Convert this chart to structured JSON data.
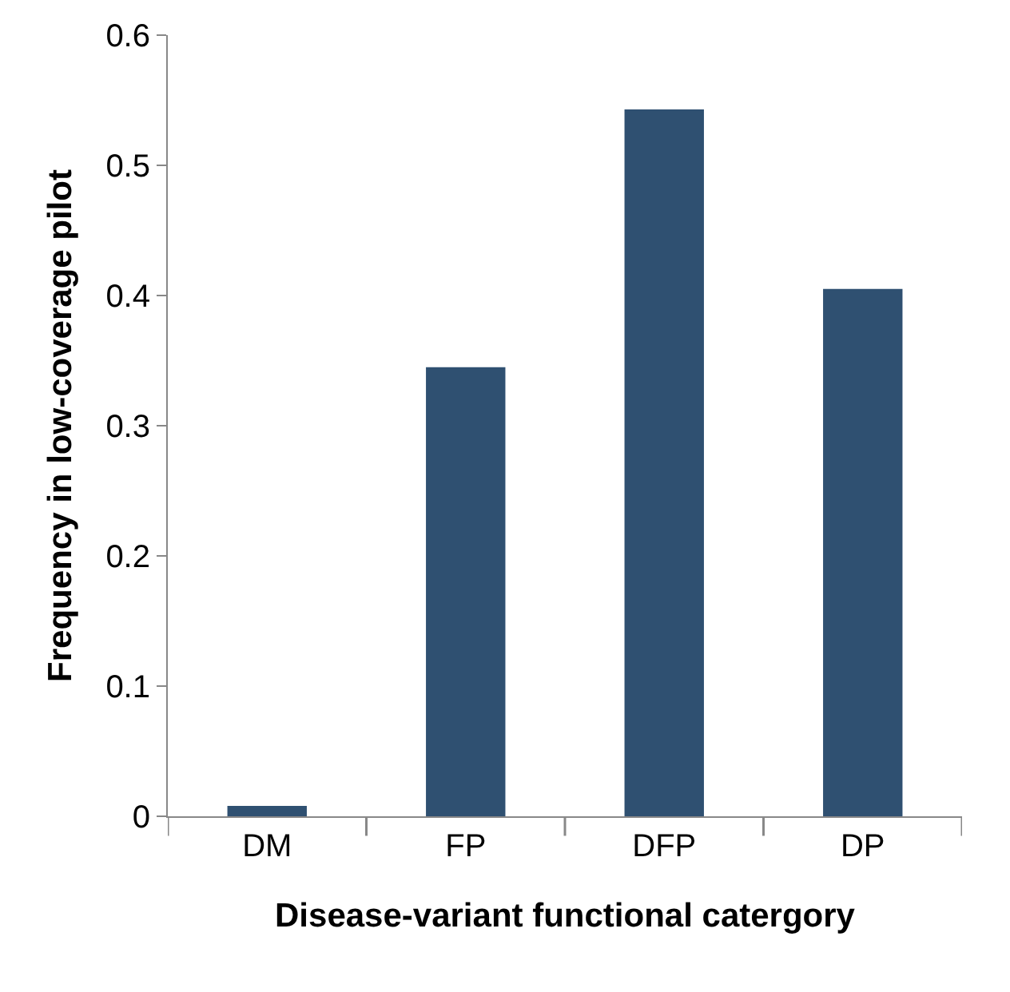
{
  "chart_data": {
    "type": "bar",
    "xlabel": "Disease-variant functional catergory",
    "ylabel": "Frequency in low-coverage pilot",
    "categories": [
      "DM",
      "FP",
      "DFP",
      "DP"
    ],
    "values": [
      0.008,
      0.345,
      0.543,
      0.405
    ],
    "color": "#2f5071",
    "ylim": [
      0,
      0.6
    ],
    "yticks": [
      0,
      0.1,
      0.2,
      0.3,
      0.4,
      0.5,
      0.6
    ]
  }
}
